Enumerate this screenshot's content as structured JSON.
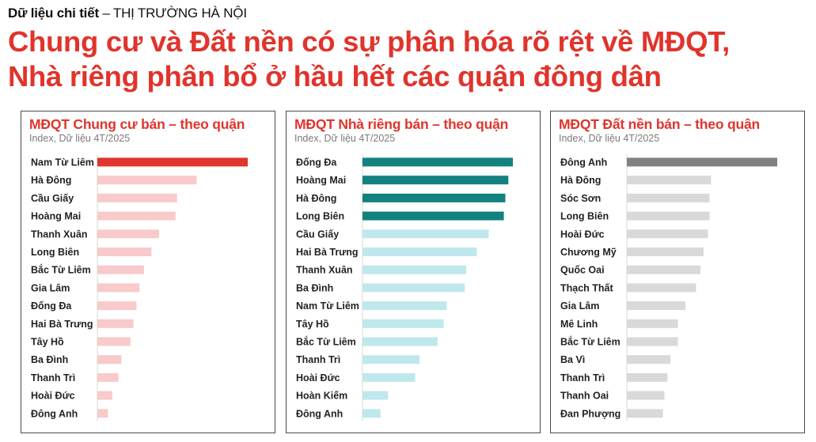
{
  "header": {
    "kicker_bold": "Dữ liệu chi tiết",
    "kicker_rest": " – THỊ TRƯỜNG HÀ NỘI",
    "headline_line1": "Chung cư và Đất nền có sự phân hóa rõ rệt về MĐQT,",
    "headline_line2": "Nhà riêng phân bổ ở hầu hết các quận đông dân"
  },
  "colors": {
    "red": "#e0342c",
    "light_red": "#f8caca",
    "teal": "#13817e",
    "light_teal": "#bfe8ec",
    "dark_grey": "#808080",
    "light_grey": "#d9d9d9"
  },
  "chart_data": [
    {
      "type": "bar",
      "orientation": "horizontal",
      "title": "MĐQT Chung cư bán – theo quận",
      "subtitle": "Index, Dữ liệu 4T/2025",
      "categories": [
        "Nam Từ Liêm",
        "Hà Đông",
        "Cầu Giấy",
        "Hoàng Mai",
        "Thanh Xuân",
        "Long Biên",
        "Bắc Từ Liêm",
        "Gia Lâm",
        "Đống Đa",
        "Hai Bà Trưng",
        "Tây Hồ",
        "Ba Đình",
        "Thanh Trì",
        "Hoài Đức",
        "Đông Anh"
      ],
      "values": [
        100,
        66,
        53,
        52,
        41,
        36,
        31,
        28,
        26,
        24,
        22,
        16,
        14,
        10,
        7
      ],
      "highlight_count": 1,
      "highlight_color": "#e0342c",
      "base_color": "#f8caca",
      "xlim": [
        0,
        100
      ]
    },
    {
      "type": "bar",
      "orientation": "horizontal",
      "title": "MĐQT Nhà riêng bán – theo quận",
      "subtitle": "Index, Dữ liệu 4T/2025",
      "categories": [
        "Đống Đa",
        "Hoàng Mai",
        "Hà Đông",
        "Long Biên",
        "Cầu Giấy",
        "Hai Bà Trưng",
        "Thanh Xuân",
        "Ba Đình",
        "Nam Từ Liêm",
        "Tây Hồ",
        "Bắc Từ Liêm",
        "Thanh Trì",
        "Hoài Đức",
        "Hoàn Kiếm",
        "Đông Anh"
      ],
      "values": [
        100,
        97,
        95,
        94,
        84,
        76,
        69,
        68,
        56,
        54,
        50,
        38,
        35,
        17,
        12
      ],
      "highlight_count": 4,
      "highlight_color": "#13817e",
      "base_color": "#bfe8ec",
      "xlim": [
        0,
        100
      ]
    },
    {
      "type": "bar",
      "orientation": "horizontal",
      "title": "MĐQT Đất nền bán – theo quận",
      "subtitle": "Index, Dữ liệu 4T/2025",
      "categories": [
        "Đông Anh",
        "Hà Đông",
        "Sóc Sơn",
        "Long Biên",
        "Hoài Đức",
        "Chương Mỹ",
        "Quốc Oai",
        "Thạch Thất",
        "Gia Lâm",
        "Mê Linh",
        "Bắc Từ Liêm",
        "Ba Vì",
        "Thanh Trì",
        "Thanh Oai",
        "Đan Phượng"
      ],
      "values": [
        100,
        56,
        55,
        55,
        54,
        51,
        49,
        46,
        39,
        34,
        34,
        29,
        27,
        25,
        24
      ],
      "highlight_count": 1,
      "highlight_color": "#808080",
      "base_color": "#d9d9d9",
      "xlim": [
        0,
        100
      ]
    }
  ]
}
